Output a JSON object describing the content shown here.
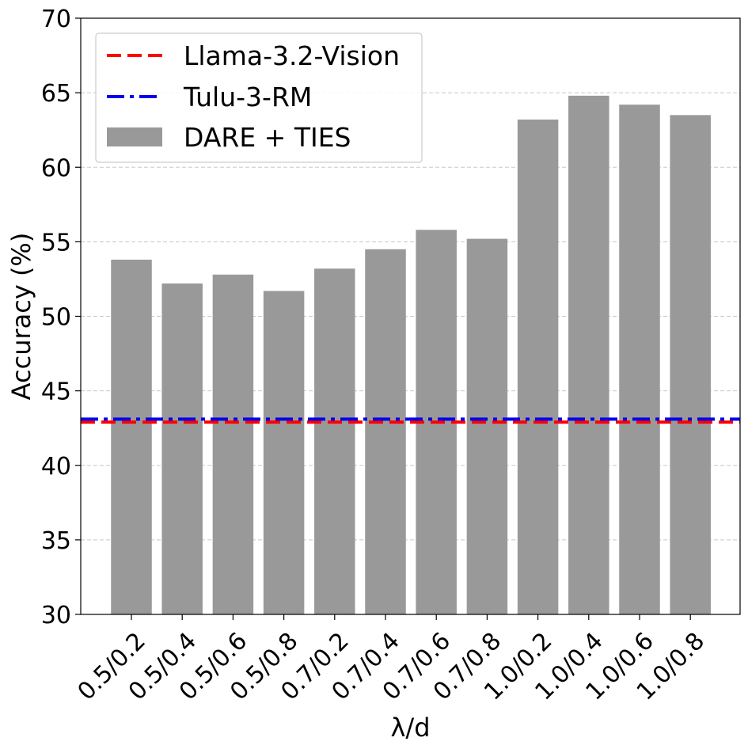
{
  "chart_data": {
    "type": "bar",
    "xlabel": "λ/d",
    "ylabel": "Accuracy (%)",
    "ylim": [
      30,
      70
    ],
    "yticks": [
      30,
      35,
      40,
      45,
      50,
      55,
      60,
      65,
      70
    ],
    "grid": "y-dashed",
    "legend_position": "top-left",
    "categories": [
      "0.5/0.2",
      "0.5/0.4",
      "0.5/0.6",
      "0.5/0.8",
      "0.7/0.2",
      "0.7/0.4",
      "0.7/0.6",
      "0.7/0.8",
      "1.0/0.2",
      "1.0/0.4",
      "1.0/0.6",
      "1.0/0.8"
    ],
    "series": [
      {
        "name": "DARE + TIES",
        "color": "#999999",
        "values": [
          53.8,
          52.2,
          52.8,
          51.7,
          53.2,
          54.5,
          55.8,
          55.2,
          63.2,
          64.8,
          64.2,
          63.5
        ]
      }
    ],
    "reference_lines": [
      {
        "name": "Llama-3.2-Vision",
        "value": 42.9,
        "color": "#ff0000",
        "style": "dashed"
      },
      {
        "name": "Tulu-3-RM",
        "value": 43.1,
        "color": "#0000ee",
        "style": "dashdot"
      }
    ]
  }
}
